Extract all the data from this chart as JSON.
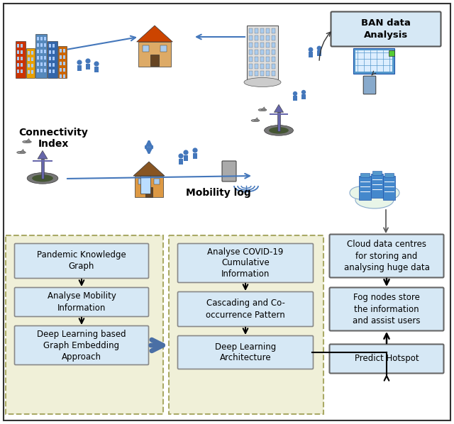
{
  "bg_color": "#ffffff",
  "inner_box_bg": "#d6e8f5",
  "inner_box_border": "#888888",
  "right_box_bg": "#d6e8f5",
  "right_box_border": "#666666",
  "ban_box_bg": "#d6e8f5",
  "ban_box_border": "#555555",
  "dashed_border_fill": "#f0f0d8",
  "dashed_border_color": "#aaaa66",
  "thick_arrow_color": "#4a6fa5",
  "blue_arrow_color": "#4477bb",
  "left_boxes": [
    "Pandemic Knowledge\nGraph",
    "Analyse Mobility\nInformation",
    "Deep Learning based\nGraph Embedding\nApproach"
  ],
  "middle_boxes": [
    "Analyse COVID-19\nCumulative\nInformation",
    "Cascading and Co-\noccurrence Pattern",
    "Deep Learning\nArchitecture"
  ],
  "right_boxes": [
    "Cloud data centres\nfor storing and\nanalysing huge data",
    "Fog nodes store\nthe information\nand assist users",
    "Predict Hotspot"
  ],
  "connectivity_label": "Connectivity\nIndex",
  "mobility_label": "Mobility log",
  "ban_label": "BAN data\nAnalysis"
}
